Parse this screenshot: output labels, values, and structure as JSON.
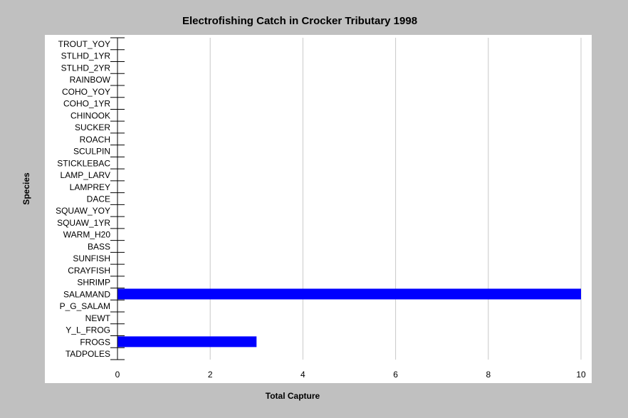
{
  "chart_data": {
    "type": "bar",
    "orientation": "horizontal",
    "title": "Electrofishing Catch in Crocker Tributary 1998",
    "xlabel": "Total Capture",
    "ylabel": "Species",
    "xlim": [
      0,
      10
    ],
    "xticks": [
      "0",
      "2",
      "4",
      "6",
      "8",
      "10"
    ],
    "xtick_values": [
      0,
      2,
      4,
      6,
      8,
      10
    ],
    "grid": "vertical",
    "categories": [
      "TROUT_YOY",
      "STLHD_1YR",
      "STLHD_2YR",
      "RAINBOW",
      "COHO_YOY",
      "COHO_1YR",
      "CHINOOK",
      "SUCKER",
      "ROACH",
      "SCULPIN",
      "STICKLEBAC",
      "LAMP_LARV",
      "LAMPREY",
      "DACE",
      "SQUAW_YOY",
      "SQUAW_1YR",
      "WARM_H20",
      "BASS",
      "SUNFISH",
      "CRAYFISH",
      "SHRIMP",
      "SALAMAND",
      "P_G_SALAM",
      "NEWT",
      "Y_L_FROG",
      "FROGS",
      "TADPOLES"
    ],
    "values": [
      0,
      0,
      0,
      0,
      0,
      0,
      0,
      0,
      0,
      0,
      0,
      0,
      0,
      0,
      0,
      0,
      0,
      0,
      0,
      0,
      0,
      10,
      0,
      0,
      0,
      3,
      0
    ],
    "colors": {
      "background": "#c0c0c0",
      "plot_background": "#ffffff",
      "bar": "#0000ff",
      "grid": "#c8c8c8",
      "axis": "#000000"
    }
  }
}
